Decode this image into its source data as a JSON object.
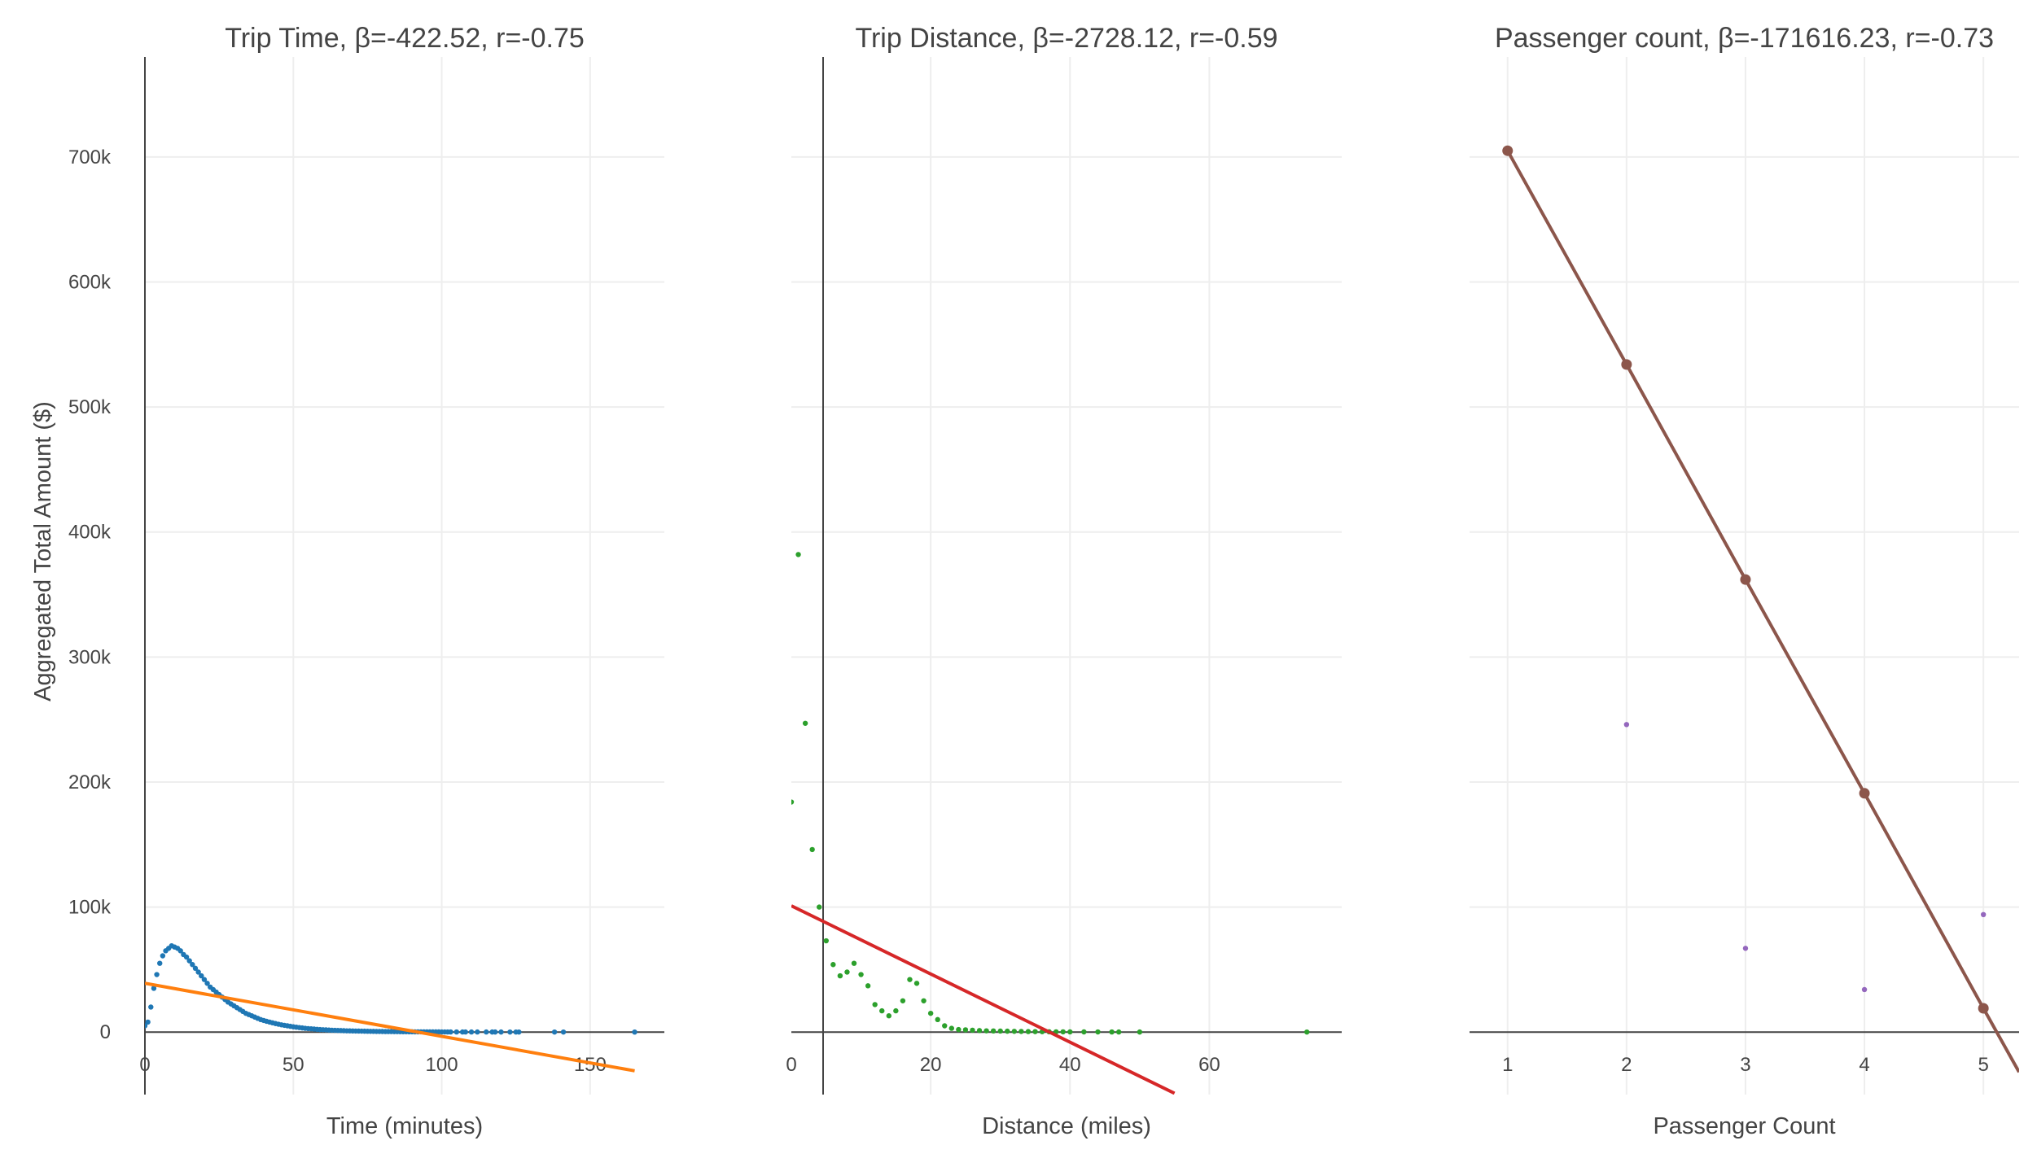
{
  "chart_data": [
    {
      "type": "scatter",
      "title": "Trip Time, β=-422.52, r=-0.75",
      "xlabel": "Time (minutes)",
      "ylabel": "Aggregated Total Amount ($)",
      "xlim": [
        0,
        175
      ],
      "ylim": [
        -50000,
        780000
      ],
      "x_ticks": [
        0,
        50,
        100,
        150
      ],
      "x_tick_labels": [
        "0",
        "50",
        "100",
        "150"
      ],
      "y_ticks": [
        0,
        100000,
        200000,
        300000,
        400000,
        500000,
        600000,
        700000
      ],
      "y_tick_labels": [
        "0",
        "100k",
        "200k",
        "300k",
        "400k",
        "500k",
        "600k",
        "700k"
      ],
      "grid": true,
      "series": [
        {
          "mode": "markers",
          "color": "#1f77b4",
          "x": [
            0,
            1,
            2,
            3,
            4,
            5,
            6,
            7,
            8,
            9,
            10,
            11,
            12,
            13,
            14,
            15,
            16,
            17,
            18,
            19,
            20,
            21,
            22,
            23,
            24,
            25,
            26,
            27,
            28,
            29,
            30,
            31,
            32,
            33,
            34,
            35,
            36,
            37,
            38,
            39,
            40,
            41,
            42,
            43,
            44,
            45,
            46,
            47,
            48,
            49,
            50,
            51,
            52,
            53,
            54,
            55,
            56,
            57,
            58,
            59,
            60,
            61,
            62,
            63,
            64,
            65,
            66,
            67,
            68,
            69,
            70,
            71,
            72,
            73,
            74,
            75,
            76,
            77,
            78,
            79,
            80,
            81,
            82,
            83,
            84,
            85,
            86,
            87,
            88,
            89,
            90,
            91,
            92,
            93,
            94,
            95,
            96,
            97,
            98,
            99,
            100,
            101,
            102,
            103,
            105,
            107,
            108,
            110,
            112,
            115,
            117,
            118,
            120,
            123,
            125,
            126,
            138,
            141,
            165
          ],
          "y": [
            5000,
            8000,
            20000,
            35000,
            46000,
            55000,
            61000,
            65000,
            67000,
            69000,
            68000,
            67000,
            65000,
            62000,
            60000,
            57000,
            54000,
            51000,
            48000,
            45000,
            42000,
            39000,
            36000,
            34000,
            32000,
            30000,
            28000,
            26000,
            24000,
            22500,
            21000,
            19500,
            18000,
            16500,
            15000,
            14000,
            13000,
            12000,
            11000,
            10000,
            9300,
            8600,
            8000,
            7400,
            6800,
            6300,
            5800,
            5400,
            5000,
            4600,
            4200,
            3900,
            3600,
            3300,
            3000,
            2800,
            2600,
            2400,
            2200,
            2000,
            1900,
            1750,
            1600,
            1500,
            1400,
            1300,
            1200,
            1100,
            1000,
            950,
            900,
            850,
            800,
            750,
            700,
            650,
            600,
            550,
            500,
            480,
            450,
            420,
            400,
            380,
            350,
            330,
            300,
            280,
            260,
            240,
            220,
            200,
            190,
            180,
            170,
            160,
            150,
            140,
            130,
            120,
            110,
            100,
            90,
            85,
            80,
            75,
            70,
            65,
            60,
            55,
            50,
            45,
            40,
            35,
            30,
            28,
            25,
            20,
            10
          ]
        },
        {
          "mode": "lines",
          "color": "#ff7f0e",
          "x": [
            0,
            165
          ],
          "y": [
            39000,
            -31000
          ]
        }
      ]
    },
    {
      "type": "scatter",
      "title": "Trip Distance, β=-2728.12, r=-0.59",
      "xlabel": "Distance (miles)",
      "ylabel": "",
      "xlim": [
        0,
        79
      ],
      "ylim": [
        -50000,
        780000
      ],
      "x_ticks": [
        0,
        20,
        40,
        60
      ],
      "x_tick_labels": [
        "0",
        "20",
        "40",
        "60"
      ],
      "y_ticks": [
        0,
        100000,
        200000,
        300000,
        400000,
        500000,
        600000,
        700000
      ],
      "y_tick_labels": [],
      "grid": true,
      "series": [
        {
          "mode": "markers",
          "color": "#2ca02c",
          "x": [
            0,
            1,
            2,
            3,
            4,
            5,
            6,
            7,
            8,
            9,
            10,
            11,
            12,
            13,
            14,
            15,
            16,
            17,
            18,
            19,
            20,
            21,
            22,
            23,
            24,
            25,
            26,
            27,
            28,
            29,
            30,
            31,
            32,
            33,
            34,
            35,
            36,
            37,
            38,
            39,
            40,
            42,
            44,
            46,
            47,
            50,
            74
          ],
          "y": [
            184000,
            382000,
            247000,
            146000,
            100000,
            73000,
            54000,
            45000,
            48000,
            55000,
            46000,
            37000,
            22000,
            17000,
            13000,
            17000,
            25000,
            42000,
            39000,
            25000,
            15000,
            10000,
            5000,
            3000,
            2000,
            1800,
            1500,
            1200,
            1000,
            900,
            800,
            700,
            600,
            500,
            400,
            350,
            300,
            250,
            200,
            180,
            150,
            120,
            100,
            80,
            60,
            40,
            20
          ]
        },
        {
          "mode": "lines",
          "color": "#d62728",
          "x": [
            0,
            55
          ],
          "y": [
            101000,
            -49000
          ]
        }
      ]
    },
    {
      "type": "scatter",
      "title": "Passenger count, β=-171616.23, r=-0.73",
      "xlabel": "Passenger Count",
      "ylabel": "",
      "xlim": [
        0.68,
        5.3
      ],
      "ylim": [
        -50000,
        780000
      ],
      "x_ticks": [
        1,
        2,
        3,
        4,
        5
      ],
      "x_tick_labels": [
        "1",
        "2",
        "3",
        "4",
        "5"
      ],
      "y_ticks": [
        0,
        100000,
        200000,
        300000,
        400000,
        500000,
        600000,
        700000
      ],
      "y_tick_labels": [],
      "grid": true,
      "series": [
        {
          "mode": "markers",
          "color": "#9467bd",
          "x": [
            2,
            3,
            4,
            5
          ],
          "y": [
            246000,
            67000,
            34000,
            94000
          ]
        },
        {
          "mode": "lines+markers",
          "color": "#8c564b",
          "x": [
            1,
            2,
            3,
            4,
            5,
            5.3
          ],
          "y": [
            705000,
            534000,
            362000,
            191000,
            19000,
            -32000
          ]
        }
      ]
    }
  ]
}
